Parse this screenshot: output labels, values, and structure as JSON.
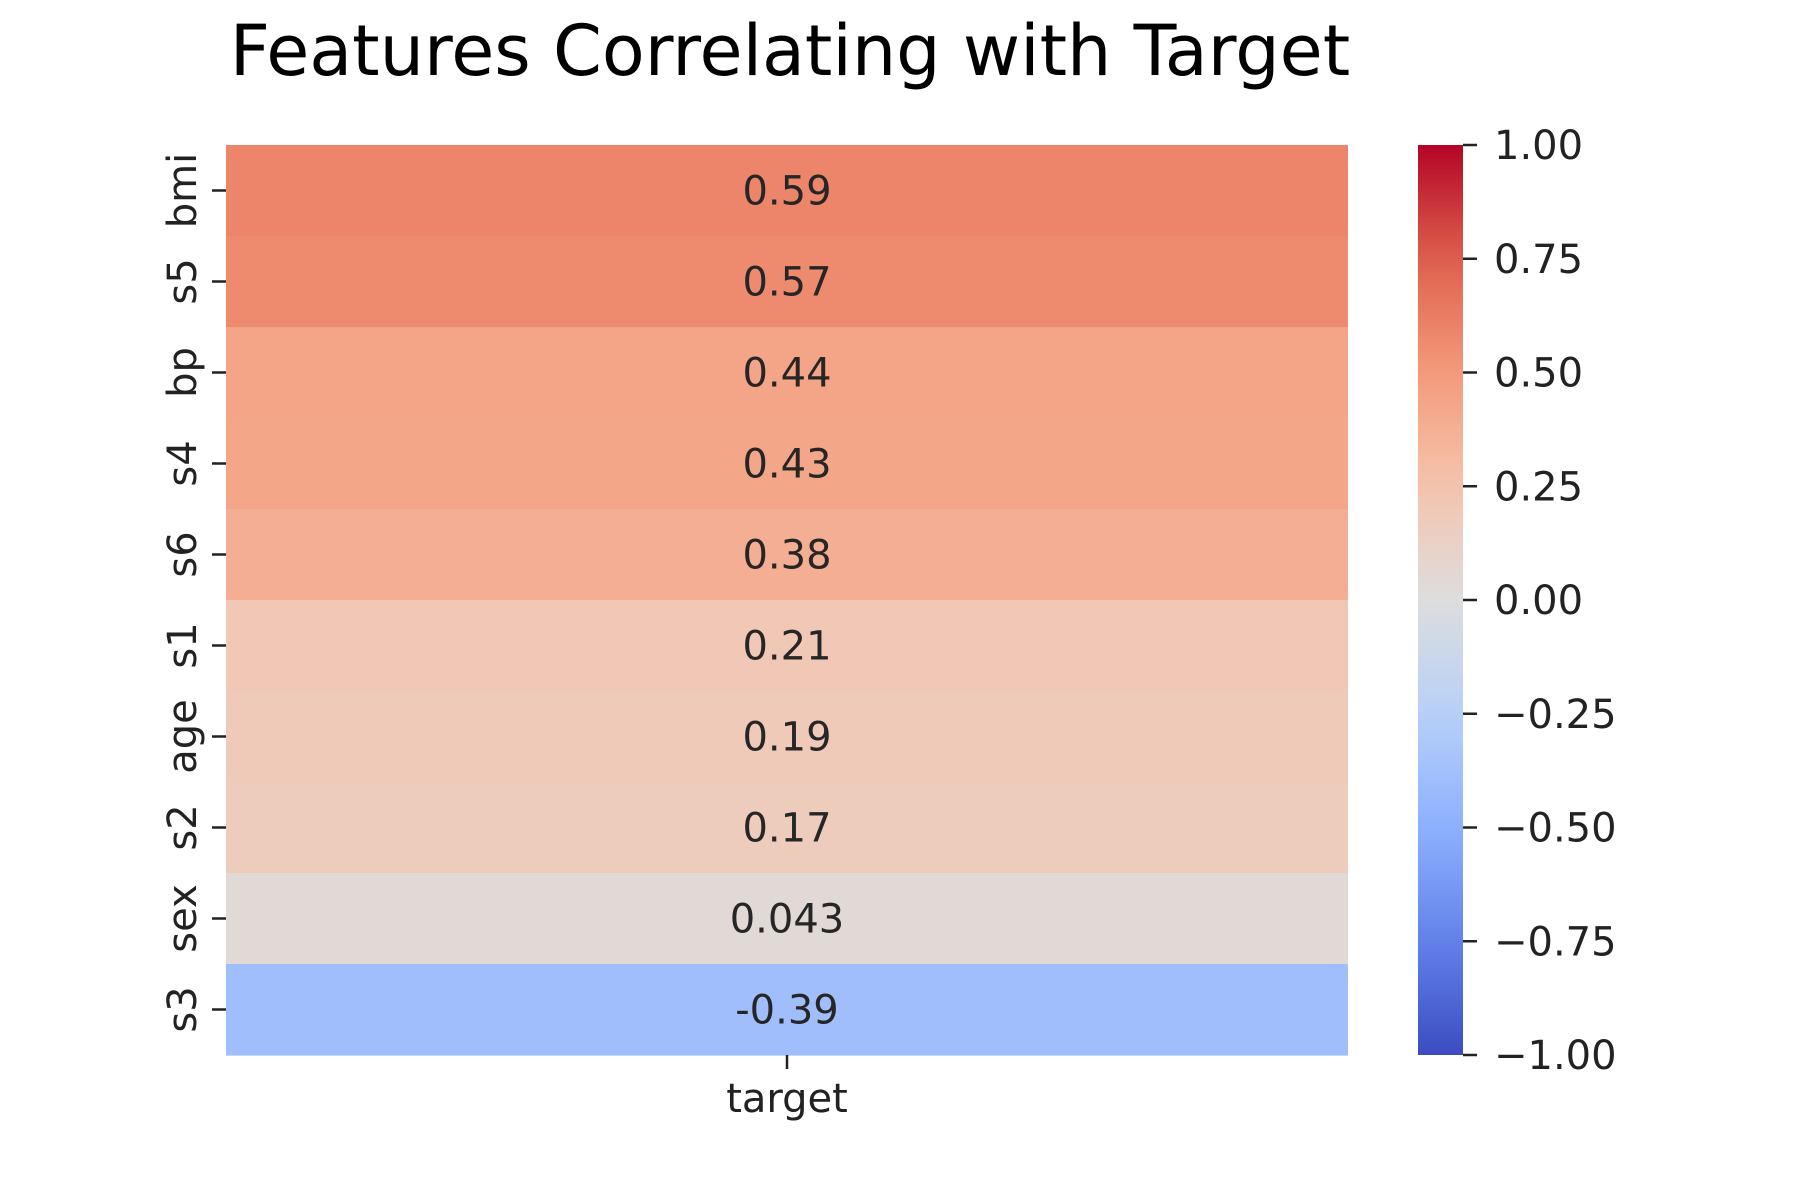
{
  "chart_data": {
    "type": "heatmap",
    "title": "Features Correlating with Target",
    "xlabel": "",
    "ylabel": "",
    "x_categories": [
      "target"
    ],
    "y_categories": [
      "bmi",
      "s5",
      "bp",
      "s4",
      "s6",
      "s1",
      "age",
      "s2",
      "sex",
      "s3"
    ],
    "values": [
      0.59,
      0.57,
      0.44,
      0.43,
      0.38,
      0.21,
      0.19,
      0.17,
      0.043,
      -0.39
    ],
    "value_labels": [
      "0.59",
      "0.57",
      "0.44",
      "0.43",
      "0.38",
      "0.21",
      "0.19",
      "0.17",
      "0.043",
      "-0.39"
    ],
    "colormap": "coolwarm",
    "vmin": -1,
    "vmax": 1,
    "colorbar": {
      "ticks": [
        1.0,
        0.75,
        0.5,
        0.25,
        0.0,
        -0.25,
        -0.5,
        -0.75,
        -1.0
      ],
      "tick_labels": [
        "1.00",
        "0.75",
        "0.50",
        "0.25",
        "0.00",
        "−0.25",
        "−0.50",
        "−0.75",
        "−1.00"
      ]
    },
    "grid": false,
    "legend": "colorbar-right"
  }
}
